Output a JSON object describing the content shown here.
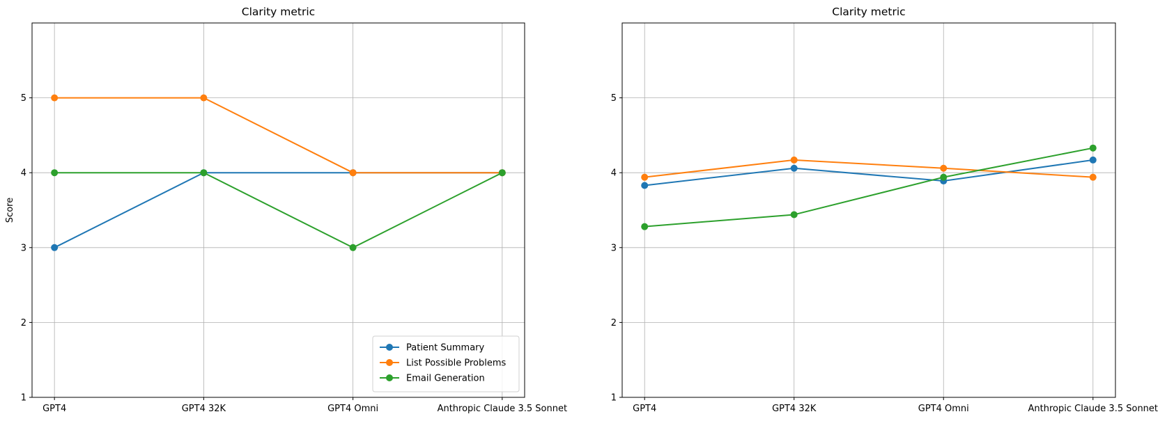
{
  "chart_data": [
    {
      "type": "line",
      "title": "Clarity metric",
      "xlabel": "",
      "ylabel": "Score",
      "categories": [
        "GPT4",
        "GPT4 32K",
        "GPT4 Omni",
        "Anthropic Claude 3.5 Sonnet"
      ],
      "ylim": [
        1,
        6
      ],
      "yticks": [
        1,
        2,
        3,
        4,
        5
      ],
      "grid": true,
      "legend": "lower-right",
      "series": [
        {
          "name": "Patient Summary",
          "color": "#1f77b4",
          "values": [
            3,
            4,
            4,
            4
          ]
        },
        {
          "name": "List Possible Problems",
          "color": "#ff7f0e",
          "values": [
            5,
            5,
            4,
            4
          ]
        },
        {
          "name": "Email Generation",
          "color": "#2ca02c",
          "values": [
            4,
            4,
            3,
            4
          ]
        }
      ]
    },
    {
      "type": "line",
      "title": "Clarity metric",
      "xlabel": "",
      "ylabel": "",
      "categories": [
        "GPT4",
        "GPT4 32K",
        "GPT4 Omni",
        "Anthropic Claude 3.5 Sonnet"
      ],
      "ylim": [
        1,
        6
      ],
      "yticks": [
        1,
        2,
        3,
        4,
        5
      ],
      "grid": true,
      "legend": "none",
      "series": [
        {
          "name": "Patient Summary",
          "color": "#1f77b4",
          "values": [
            3.83,
            4.06,
            3.89,
            4.17
          ]
        },
        {
          "name": "List Possible Problems",
          "color": "#ff7f0e",
          "values": [
            3.94,
            4.17,
            4.06,
            3.94
          ]
        },
        {
          "name": "Email Generation",
          "color": "#2ca02c",
          "values": [
            3.28,
            3.44,
            3.94,
            4.33
          ]
        }
      ]
    }
  ]
}
